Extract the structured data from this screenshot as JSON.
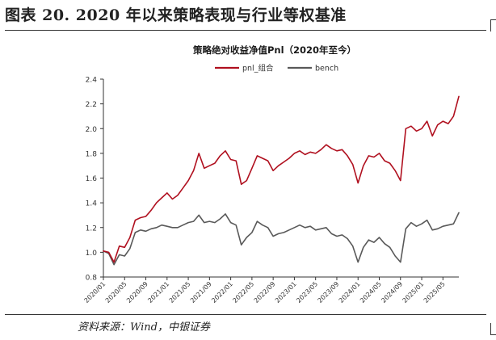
{
  "figure_title": "图表 20. 2020 年以来策略表现与行业等权基准",
  "source": "资料来源：Wind，中银证券",
  "colors": {
    "pnl": "#b0101f",
    "bench": "#595959",
    "axis": "#333333",
    "tick_text": "#333333"
  },
  "chart_data": {
    "type": "line",
    "title": "策略绝对收益净值Pnl（2020年至今）",
    "xlabel": "",
    "ylabel": "",
    "ylim": [
      0.8,
      2.4
    ],
    "yticks": [
      "0.8",
      "1.0",
      "1.2",
      "1.4",
      "1.6",
      "1.8",
      "2.0",
      "2.2",
      "2.4"
    ],
    "xticks": [
      "2020/01",
      "2020/05",
      "2020/09",
      "2021/01",
      "2021/05",
      "2021/09",
      "2022/01",
      "2022/05",
      "2022/09",
      "2023/01",
      "2023/05",
      "2023/09",
      "2024/01",
      "2024/05",
      "2024/09",
      "2025/01",
      "2025/05"
    ],
    "legend_position": "top",
    "grid": false,
    "series": [
      {
        "name": "pnl_组合",
        "x": [
          "2020/01",
          "2020/02",
          "2020/03",
          "2020/04",
          "2020/05",
          "2020/06",
          "2020/07",
          "2020/08",
          "2020/09",
          "2020/10",
          "2020/11",
          "2020/12",
          "2021/01",
          "2021/02",
          "2021/03",
          "2021/04",
          "2021/05",
          "2021/06",
          "2021/07",
          "2021/08",
          "2021/09",
          "2021/10",
          "2021/11",
          "2021/12",
          "2022/01",
          "2022/02",
          "2022/03",
          "2022/04",
          "2022/05",
          "2022/06",
          "2022/07",
          "2022/08",
          "2022/09",
          "2022/10",
          "2022/11",
          "2022/12",
          "2023/01",
          "2023/02",
          "2023/03",
          "2023/04",
          "2023/05",
          "2023/06",
          "2023/07",
          "2023/08",
          "2023/09",
          "2023/10",
          "2023/11",
          "2023/12",
          "2024/01",
          "2024/02",
          "2024/03",
          "2024/04",
          "2024/05",
          "2024/06",
          "2024/07",
          "2024/08",
          "2024/09",
          "2024/10",
          "2024/11",
          "2024/12",
          "2025/01",
          "2025/02",
          "2025/03",
          "2025/04",
          "2025/05",
          "2025/06",
          "2025/07",
          "2025/08"
        ],
        "values": [
          1.01,
          1.0,
          0.92,
          1.05,
          1.04,
          1.12,
          1.26,
          1.28,
          1.29,
          1.34,
          1.4,
          1.44,
          1.48,
          1.43,
          1.46,
          1.52,
          1.58,
          1.66,
          1.8,
          1.68,
          1.7,
          1.72,
          1.78,
          1.82,
          1.75,
          1.74,
          1.55,
          1.58,
          1.68,
          1.78,
          1.76,
          1.74,
          1.66,
          1.7,
          1.73,
          1.76,
          1.8,
          1.82,
          1.79,
          1.81,
          1.8,
          1.83,
          1.87,
          1.84,
          1.82,
          1.83,
          1.78,
          1.71,
          1.56,
          1.7,
          1.78,
          1.77,
          1.8,
          1.74,
          1.72,
          1.66,
          1.58,
          2.0,
          2.02,
          1.98,
          2.0,
          2.06,
          1.94,
          2.03,
          2.06,
          2.04,
          2.1,
          2.26
        ]
      },
      {
        "name": "bench",
        "x": [
          "2020/01",
          "2020/02",
          "2020/03",
          "2020/04",
          "2020/05",
          "2020/06",
          "2020/07",
          "2020/08",
          "2020/09",
          "2020/10",
          "2020/11",
          "2020/12",
          "2021/01",
          "2021/02",
          "2021/03",
          "2021/04",
          "2021/05",
          "2021/06",
          "2021/07",
          "2021/08",
          "2021/09",
          "2021/10",
          "2021/11",
          "2021/12",
          "2022/01",
          "2022/02",
          "2022/03",
          "2022/04",
          "2022/05",
          "2022/06",
          "2022/07",
          "2022/08",
          "2022/09",
          "2022/10",
          "2022/11",
          "2022/12",
          "2023/01",
          "2023/02",
          "2023/03",
          "2023/04",
          "2023/05",
          "2023/06",
          "2023/07",
          "2023/08",
          "2023/09",
          "2023/10",
          "2023/11",
          "2023/12",
          "2024/01",
          "2024/02",
          "2024/03",
          "2024/04",
          "2024/05",
          "2024/06",
          "2024/07",
          "2024/08",
          "2024/09",
          "2024/10",
          "2024/11",
          "2024/12",
          "2025/01",
          "2025/02",
          "2025/03",
          "2025/04",
          "2025/05",
          "2025/06",
          "2025/07",
          "2025/08"
        ],
        "values": [
          1.01,
          0.99,
          0.9,
          0.98,
          0.97,
          1.03,
          1.16,
          1.18,
          1.17,
          1.19,
          1.2,
          1.22,
          1.21,
          1.2,
          1.2,
          1.22,
          1.24,
          1.25,
          1.3,
          1.24,
          1.25,
          1.24,
          1.27,
          1.31,
          1.24,
          1.22,
          1.06,
          1.12,
          1.16,
          1.25,
          1.22,
          1.2,
          1.13,
          1.15,
          1.16,
          1.18,
          1.2,
          1.22,
          1.2,
          1.21,
          1.18,
          1.19,
          1.2,
          1.15,
          1.13,
          1.14,
          1.11,
          1.05,
          0.92,
          1.04,
          1.1,
          1.08,
          1.12,
          1.07,
          1.04,
          0.97,
          0.92,
          1.19,
          1.24,
          1.21,
          1.23,
          1.26,
          1.18,
          1.19,
          1.21,
          1.22,
          1.23,
          1.32
        ]
      }
    ]
  }
}
